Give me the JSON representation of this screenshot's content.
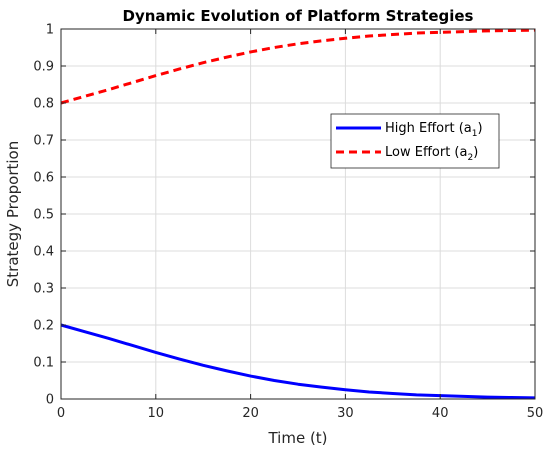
{
  "chart_data": {
    "type": "line",
    "title": "Dynamic Evolution of Platform Strategies",
    "xlabel": "Time (t)",
    "ylabel": "Strategy Proportion",
    "xlim": [
      0,
      50
    ],
    "ylim": [
      0,
      1
    ],
    "xticks": [
      "0",
      "10",
      "20",
      "30",
      "40",
      "50"
    ],
    "yticks": [
      "0",
      "0.1",
      "0.2",
      "0.3",
      "0.4",
      "0.5",
      "0.6",
      "0.7",
      "0.8",
      "0.9",
      "1"
    ],
    "grid": true,
    "legend_position": "upper-right",
    "series": [
      {
        "name": "High Effort (a1)",
        "name_main": "High Effort (a",
        "name_sub": "1",
        "name_close": ")",
        "color": "#0000ff",
        "style": "solid",
        "x": [
          0,
          2.5,
          5,
          7.5,
          10,
          12.5,
          15,
          17.5,
          20,
          22.5,
          25,
          27.5,
          30,
          32.5,
          35,
          37.5,
          40,
          42.5,
          45,
          47.5,
          50
        ],
        "y": [
          0.2,
          0.182,
          0.164,
          0.145,
          0.126,
          0.108,
          0.091,
          0.076,
          0.062,
          0.05,
          0.04,
          0.032,
          0.025,
          0.019,
          0.015,
          0.011,
          0.009,
          0.007,
          0.005,
          0.004,
          0.003
        ]
      },
      {
        "name": "Low Effort (a2)",
        "name_main": "Low Effort (a",
        "name_sub": "2",
        "name_close": ")",
        "color": "#ff0000",
        "style": "dashed",
        "x": [
          0,
          2.5,
          5,
          7.5,
          10,
          12.5,
          15,
          17.5,
          20,
          22.5,
          25,
          27.5,
          30,
          32.5,
          35,
          37.5,
          40,
          42.5,
          45,
          47.5,
          50
        ],
        "y": [
          0.8,
          0.818,
          0.836,
          0.855,
          0.874,
          0.892,
          0.909,
          0.924,
          0.938,
          0.95,
          0.96,
          0.968,
          0.975,
          0.981,
          0.985,
          0.989,
          0.991,
          0.993,
          0.995,
          0.996,
          0.997
        ]
      }
    ]
  }
}
